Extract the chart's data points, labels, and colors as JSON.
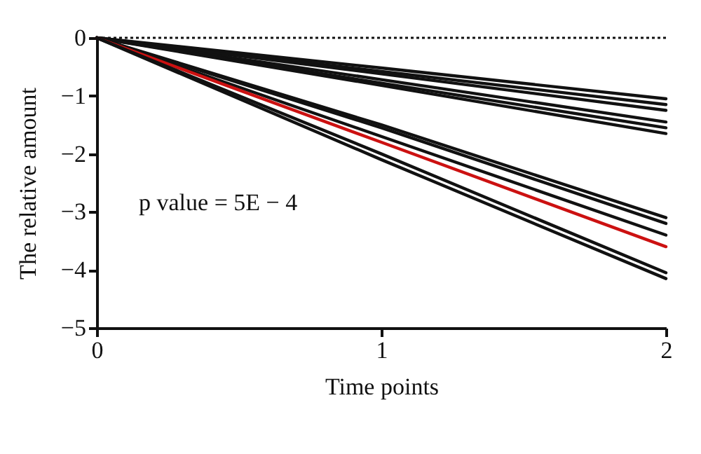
{
  "chart_data": {
    "type": "line",
    "xlabel": "Time points",
    "ylabel": "The relative amount",
    "x": [
      0,
      1,
      2
    ],
    "xlim": [
      0,
      2
    ],
    "xticks": [
      0,
      1,
      2
    ],
    "ylim": [
      -5,
      0
    ],
    "yticks": [
      0,
      -1,
      -2,
      -3,
      -4,
      -5
    ],
    "grid": false,
    "legend": false,
    "marker": "none",
    "line_style": "solid",
    "series": [
      {
        "color": "#111111",
        "values": [
          0,
          -0.52,
          -1.05
        ]
      },
      {
        "color": "#111111",
        "values": [
          0,
          -0.58,
          -1.15
        ]
      },
      {
        "color": "#111111",
        "values": [
          0,
          -0.62,
          -1.25
        ]
      },
      {
        "color": "#111111",
        "values": [
          0,
          -0.72,
          -1.45
        ]
      },
      {
        "color": "#111111",
        "values": [
          0,
          -0.78,
          -1.55
        ]
      },
      {
        "color": "#111111",
        "values": [
          0,
          -0.82,
          -1.65
        ]
      },
      {
        "color": "#111111",
        "values": [
          0,
          -1.5,
          -3.1
        ]
      },
      {
        "color": "#111111",
        "values": [
          0,
          -1.55,
          -3.2
        ]
      },
      {
        "color": "#111111",
        "values": [
          0,
          -1.7,
          -3.4
        ]
      },
      {
        "color": "#cc1111",
        "values": [
          0,
          -1.8,
          -3.6
        ]
      },
      {
        "color": "#111111",
        "values": [
          0,
          -2.0,
          -4.05
        ]
      },
      {
        "color": "#111111",
        "values": [
          0,
          -2.1,
          -4.15
        ]
      }
    ],
    "ref_lines": [
      {
        "axis": "y",
        "value": 0,
        "line_style": "dotted",
        "color": "#111111"
      }
    ],
    "annotations": [
      "p value = 5E − 4"
    ]
  }
}
